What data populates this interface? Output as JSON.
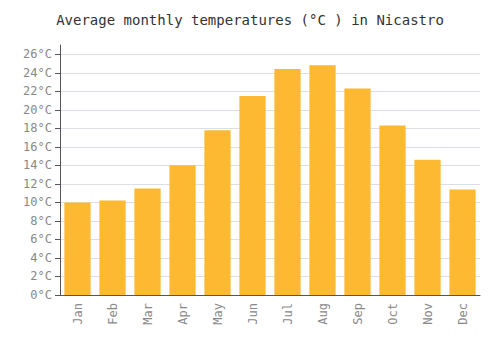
{
  "chart_data": {
    "type": "bar",
    "title": "Average monthly temperatures (°C ) in Nicastro",
    "categories": [
      "Jan",
      "Feb",
      "Mar",
      "Apr",
      "May",
      "Jun",
      "Jul",
      "Aug",
      "Sep",
      "Oct",
      "Nov",
      "Dec"
    ],
    "values": [
      10.0,
      10.2,
      11.5,
      14.0,
      17.8,
      21.5,
      24.4,
      24.8,
      22.3,
      18.3,
      14.6,
      11.4
    ],
    "color": "#FDB931",
    "ylim": [
      0,
      27
    ],
    "yticks": [
      {
        "value": 0,
        "label": "0°C"
      },
      {
        "value": 2,
        "label": "2°C"
      },
      {
        "value": 4,
        "label": "4°C"
      },
      {
        "value": 6,
        "label": "6°C"
      },
      {
        "value": 8,
        "label": "8°C"
      },
      {
        "value": 10,
        "label": "10°C"
      },
      {
        "value": 12,
        "label": "12°C"
      },
      {
        "value": 14,
        "label": "14°C"
      },
      {
        "value": 16,
        "label": "16°C"
      },
      {
        "value": 18,
        "label": "18°C"
      },
      {
        "value": 20,
        "label": "20°C"
      },
      {
        "value": 22,
        "label": "22°C"
      },
      {
        "value": 24,
        "label": "24°C"
      },
      {
        "value": 26,
        "label": "26°C"
      }
    ],
    "grid": true
  }
}
